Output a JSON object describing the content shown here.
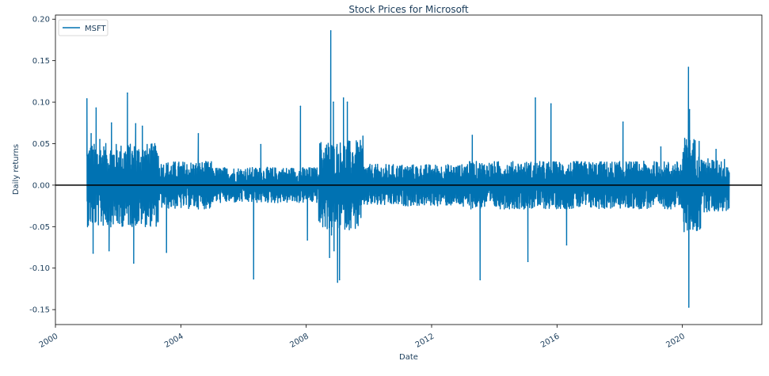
{
  "chart_data": {
    "type": "line",
    "title": "Stock Prices for Microsoft",
    "xlabel": "Date",
    "ylabel": "Daily returns",
    "xlim": [
      "2000-01-01",
      "2022-07-15"
    ],
    "ylim": [
      -0.168,
      0.205
    ],
    "xticks": [
      "2000",
      "2004",
      "2008",
      "2012",
      "2016",
      "2020"
    ],
    "yticks": [
      "-0.15",
      "-0.10",
      "-0.05",
      "0.00",
      "0.05",
      "0.10",
      "0.15",
      "0.20"
    ],
    "grid": false,
    "legend": {
      "placement": "top-left",
      "entries": [
        "MSFT"
      ]
    },
    "reference_line": {
      "y": 0,
      "color": "#000000"
    },
    "series": [
      {
        "name": "MSFT",
        "color": "#0072b2",
        "points": [
          [
            "2001-01-02",
            0.104
          ],
          [
            "2001-01-18",
            -0.048
          ],
          [
            "2001-02-20",
            0.062
          ],
          [
            "2001-03-15",
            -0.082
          ],
          [
            "2001-04-19",
            0.093
          ],
          [
            "2001-06-01",
            0.055
          ],
          [
            "2001-09-17",
            -0.079
          ],
          [
            "2001-10-15",
            0.075
          ],
          [
            "2002-01-18",
            -0.046
          ],
          [
            "2002-04-19",
            0.111
          ],
          [
            "2002-07-01",
            -0.094
          ],
          [
            "2002-07-24",
            0.074
          ],
          [
            "2002-10-10",
            0.071
          ],
          [
            "2003-01-10",
            -0.048
          ],
          [
            "2003-03-24",
            -0.045
          ],
          [
            "2003-07-18",
            -0.081
          ],
          [
            "2004-07-23",
            0.062
          ],
          [
            "2006-04-28",
            -0.113
          ],
          [
            "2006-07-21",
            0.049
          ],
          [
            "2007-10-26",
            0.095
          ],
          [
            "2008-01-15",
            -0.066
          ],
          [
            "2008-09-29",
            -0.087
          ],
          [
            "2008-10-13",
            0.186
          ],
          [
            "2008-10-22",
            -0.06
          ],
          [
            "2008-11-13",
            0.1
          ],
          [
            "2008-11-20",
            -0.079
          ],
          [
            "2008-12-31",
            -0.117
          ],
          [
            "2009-01-23",
            -0.114
          ],
          [
            "2009-03-10",
            0.105
          ],
          [
            "2009-04-24",
            0.1
          ],
          [
            "2009-10-23",
            0.059
          ],
          [
            "2013-04-19",
            0.06
          ],
          [
            "2013-07-19",
            -0.114
          ],
          [
            "2015-01-27",
            -0.092
          ],
          [
            "2015-04-24",
            0.105
          ],
          [
            "2015-10-23",
            0.098
          ],
          [
            "2016-04-22",
            -0.072
          ],
          [
            "2018-02-08",
            0.076
          ],
          [
            "2019-04-25",
            0.046
          ],
          [
            "2020-03-12",
            0.142
          ],
          [
            "2020-03-16",
            -0.147
          ],
          [
            "2020-03-24",
            0.091
          ],
          [
            "2021-01-27",
            0.043
          ],
          [
            "2021-06-30",
            0.01
          ]
        ]
      }
    ]
  }
}
